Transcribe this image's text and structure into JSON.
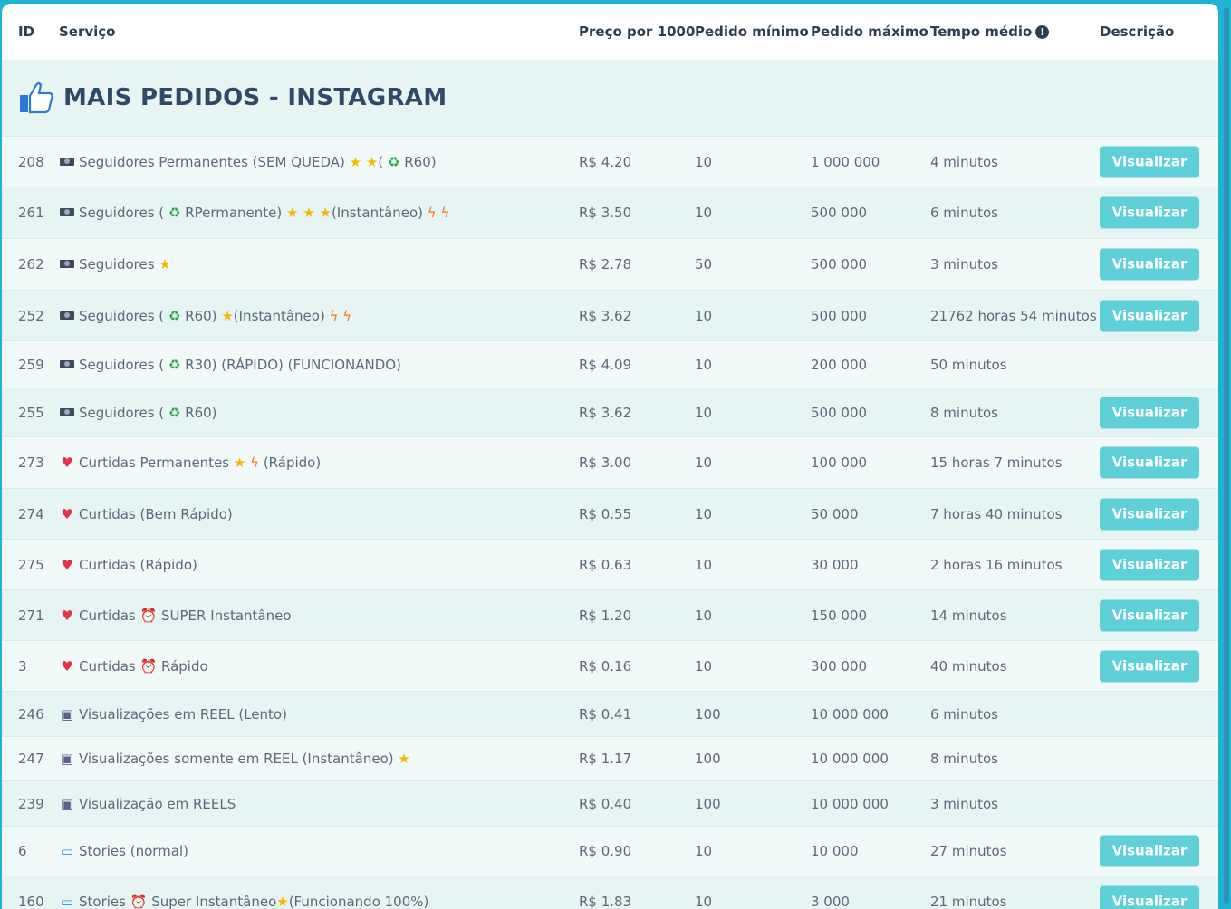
{
  "colors": {
    "accent": "#1fb4d6",
    "button": "#5fd0d8",
    "title": "#2f4a67"
  },
  "headers": {
    "id": "ID",
    "service": "Serviço",
    "price": "Preço por 1000",
    "min": "Pedido mínimo",
    "max": "Pedido máximo",
    "time": "Tempo médio",
    "desc": "Descrição"
  },
  "category": {
    "title": "MAIS PEDIDOS - INSTAGRAM",
    "icon": "thumbs-up-icon"
  },
  "button_label": "Visualizar",
  "rows": [
    {
      "id": "208",
      "name": "Seguidores Permanentes (SEM QUEDA)",
      "price": "R$ 4.20",
      "min": "10",
      "max": "1 000 000",
      "time": "4 minutos",
      "btn": true
    },
    {
      "id": "261",
      "name": "Seguidores (",
      "price": "R$ 3.50",
      "min": "10",
      "max": "500 000",
      "time": "6 minutos",
      "btn": true
    },
    {
      "id": "262",
      "name": "Seguidores",
      "price": "R$ 2.78",
      "min": "50",
      "max": "500 000",
      "time": "3 minutos",
      "btn": true
    },
    {
      "id": "252",
      "name": "Seguidores (",
      "price": "R$ 3.62",
      "min": "10",
      "max": "500 000",
      "time": "21762 horas 54 minutos",
      "btn": true
    },
    {
      "id": "259",
      "name": "Seguidores (",
      "price": "R$ 4.09",
      "min": "10",
      "max": "200 000",
      "time": "50 minutos",
      "btn": false
    },
    {
      "id": "255",
      "name": "Seguidores (",
      "price": "R$ 3.62",
      "min": "10",
      "max": "500 000",
      "time": "8 minutos",
      "btn": true
    },
    {
      "id": "273",
      "name": "Curtidas Permanentes",
      "price": "R$ 3.00",
      "min": "10",
      "max": "100 000",
      "time": "15 horas 7 minutos",
      "btn": true
    },
    {
      "id": "274",
      "name": "Curtidas (Bem Rápido)",
      "price": "R$ 0.55",
      "min": "10",
      "max": "50 000",
      "time": "7 horas 40 minutos",
      "btn": true
    },
    {
      "id": "275",
      "name": "Curtidas (Rápido)",
      "price": "R$ 0.63",
      "min": "10",
      "max": "30 000",
      "time": "2 horas 16 minutos",
      "btn": true
    },
    {
      "id": "271",
      "name": "Curtidas",
      "price": "R$ 1.20",
      "min": "10",
      "max": "150 000",
      "time": "14 minutos",
      "btn": true
    },
    {
      "id": "3",
      "name": "Curtidas",
      "price": "R$ 0.16",
      "min": "10",
      "max": "300 000",
      "time": "40 minutos",
      "btn": true
    },
    {
      "id": "246",
      "name": "Visualizações em REEL (Lento)",
      "price": "R$ 0.41",
      "min": "100",
      "max": "10 000 000",
      "time": "6 minutos",
      "btn": false
    },
    {
      "id": "247",
      "name": "Visualizações somente em REEL (Instantâneo)",
      "price": "R$ 1.17",
      "min": "100",
      "max": "10 000 000",
      "time": "8 minutos",
      "btn": false
    },
    {
      "id": "239",
      "name": "Visualização em REELS",
      "price": "R$ 0.40",
      "min": "100",
      "max": "10 000 000",
      "time": "3 minutos",
      "btn": false
    },
    {
      "id": "6",
      "name": "Stories (normal)",
      "price": "R$ 0.90",
      "min": "10",
      "max": "10 000",
      "time": "27 minutos",
      "btn": true
    },
    {
      "id": "160",
      "name": "Stories",
      "price": "R$ 1.83",
      "min": "10",
      "max": "3 000",
      "time": "21 minutos",
      "btn": true
    }
  ],
  "extras": {
    "r208_a": "(",
    "r208_b": "R60)",
    "r261_a": "RPermanente)",
    "r261_b": "(Instantâneo)",
    "r252_a": "R60)",
    "r252_b": "(Instantâneo)",
    "r259_a": "R30) (RÁPIDO) (FUNCIONANDO)",
    "r255_a": "R60)",
    "r273_a": "(Rápido)",
    "r271_a": "SUPER Instantâneo",
    "r3_a": "Rápido",
    "r160_a": "Super Instantâneo",
    "r160_b": "(Funcionando 100%)"
  },
  "icons": {
    "camera": "camera-icon",
    "star": "star-icon",
    "recycle": "recycle-icon",
    "bolt": "lightning-icon",
    "heart": "heart-icon",
    "clock": "alarm-clock-icon",
    "reel": "video-camera-icon",
    "book": "open-book-icon"
  }
}
